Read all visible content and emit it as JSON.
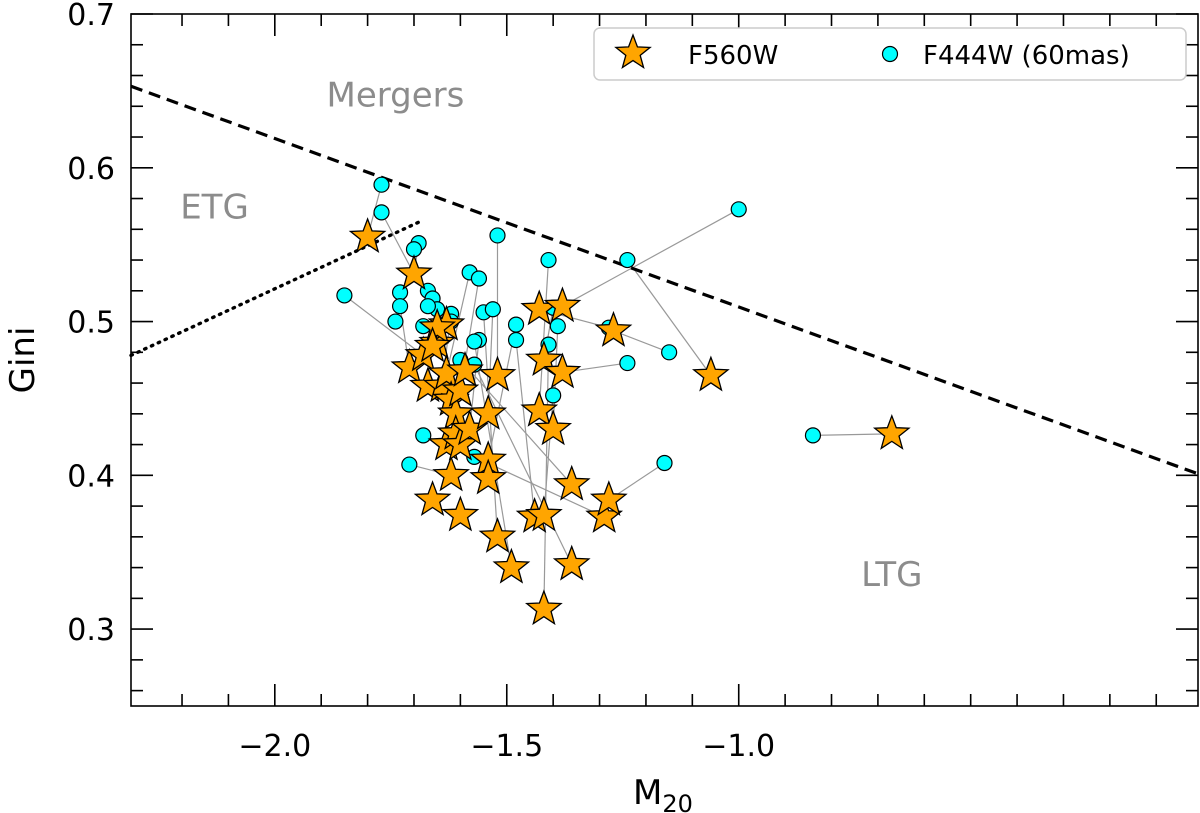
{
  "chart_data": {
    "type": "scatter",
    "xlabel": "M",
    "xlabel_sub": "20",
    "ylabel": "Gini",
    "xlim": [
      -2.31,
      -0.01
    ],
    "ylim": [
      0.25,
      0.7
    ],
    "x_major_ticks": [
      -2.0,
      -1.5,
      -1.0
    ],
    "x_tick_labels": [
      "−2.0",
      "−1.5",
      "−1.0"
    ],
    "y_major_ticks": [
      0.3,
      0.4,
      0.5,
      0.6,
      0.7
    ],
    "y_tick_labels": [
      "0.3",
      "0.4",
      "0.5",
      "0.6",
      "0.7"
    ],
    "legend": {
      "placement": "top-right",
      "entries": [
        "F560W",
        "F444W (60mas)"
      ]
    },
    "colors": {
      "star": "#ffa500",
      "circle": "#00ffff",
      "dashed": "#000000",
      "link": "#999999",
      "region_text": "#8c8c8c"
    },
    "regions": [
      {
        "label": "Mergers",
        "x": -1.74,
        "y": 0.64
      },
      {
        "label": "ETG",
        "x": -2.13,
        "y": 0.567
      },
      {
        "label": "LTG",
        "x": -0.67,
        "y": 0.328
      }
    ],
    "boundary_lines": [
      {
        "style": "dashed",
        "points": [
          [
            -2.31,
            0.653
          ],
          [
            -0.01,
            0.401
          ]
        ]
      },
      {
        "style": "dotted",
        "points": [
          [
            -2.31,
            0.478
          ],
          [
            -1.68,
            0.566
          ]
        ]
      }
    ],
    "series": [
      {
        "name": "F560W",
        "marker": "star",
        "points": [
          [
            -1.8,
            0.555
          ],
          [
            -1.7,
            0.531
          ],
          [
            -1.71,
            0.47
          ],
          [
            -1.68,
            0.478
          ],
          [
            -1.67,
            0.458
          ],
          [
            -1.65,
            0.486
          ],
          [
            -1.64,
            0.458
          ],
          [
            -1.63,
            0.466
          ],
          [
            -1.62,
            0.449
          ],
          [
            -1.61,
            0.44
          ],
          [
            -1.6,
            0.455
          ],
          [
            -1.59,
            0.468
          ],
          [
            -1.63,
            0.42
          ],
          [
            -1.61,
            0.427
          ],
          [
            -1.62,
            0.4
          ],
          [
            -1.6,
            0.42
          ],
          [
            -1.58,
            0.43
          ],
          [
            -1.66,
            0.384
          ],
          [
            -1.6,
            0.374
          ],
          [
            -1.54,
            0.44
          ],
          [
            -1.54,
            0.41
          ],
          [
            -1.54,
            0.398
          ],
          [
            -1.52,
            0.465
          ],
          [
            -1.52,
            0.36
          ],
          [
            -1.49,
            0.34
          ],
          [
            -1.42,
            0.313
          ],
          [
            -1.44,
            0.373
          ],
          [
            -1.42,
            0.374
          ],
          [
            -1.43,
            0.442
          ],
          [
            -1.42,
            0.475
          ],
          [
            -1.4,
            0.43
          ],
          [
            -1.38,
            0.467
          ],
          [
            -1.43,
            0.508
          ],
          [
            -1.38,
            0.51
          ],
          [
            -1.36,
            0.342
          ],
          [
            -1.36,
            0.394
          ],
          [
            -1.29,
            0.373
          ],
          [
            -1.28,
            0.384
          ],
          [
            -1.27,
            0.494
          ],
          [
            -1.06,
            0.465
          ],
          [
            -0.67,
            0.427
          ],
          [
            -1.63,
            0.498
          ],
          [
            -1.65,
            0.496
          ],
          [
            -1.66,
            0.484
          ]
        ]
      },
      {
        "name": "F444W (60mas)",
        "marker": "circle",
        "points": [
          [
            -1.77,
            0.589
          ],
          [
            -1.77,
            0.571
          ],
          [
            -1.69,
            0.551
          ],
          [
            -1.7,
            0.547
          ],
          [
            -1.85,
            0.517
          ],
          [
            -1.73,
            0.519
          ],
          [
            -1.73,
            0.51
          ],
          [
            -1.74,
            0.5
          ],
          [
            -1.68,
            0.497
          ],
          [
            -1.67,
            0.52
          ],
          [
            -1.66,
            0.515
          ],
          [
            -1.65,
            0.508
          ],
          [
            -1.64,
            0.498
          ],
          [
            -1.62,
            0.505
          ],
          [
            -1.62,
            0.5
          ],
          [
            -1.67,
            0.51
          ],
          [
            -1.58,
            0.532
          ],
          [
            -1.56,
            0.528
          ],
          [
            -1.52,
            0.556
          ],
          [
            -1.56,
            0.488
          ],
          [
            -1.57,
            0.487
          ],
          [
            -1.55,
            0.506
          ],
          [
            -1.53,
            0.508
          ],
          [
            -1.48,
            0.498
          ],
          [
            -1.48,
            0.488
          ],
          [
            -1.41,
            0.54
          ],
          [
            -1.41,
            0.485
          ],
          [
            -1.4,
            0.452
          ],
          [
            -1.39,
            0.497
          ],
          [
            -1.4,
            0.509
          ],
          [
            -1.24,
            0.54
          ],
          [
            -1.28,
            0.496
          ],
          [
            -1.24,
            0.473
          ],
          [
            -1.15,
            0.48
          ],
          [
            -1.0,
            0.573
          ],
          [
            -1.16,
            0.408
          ],
          [
            -0.84,
            0.426
          ],
          [
            -1.68,
            0.426
          ],
          [
            -1.71,
            0.407
          ],
          [
            -1.57,
            0.412
          ],
          [
            -1.57,
            0.472
          ],
          [
            -1.6,
            0.475
          ]
        ]
      }
    ],
    "links": [
      [
        [
          -1.8,
          0.555
        ],
        [
          -1.77,
          0.589
        ]
      ],
      [
        [
          -1.7,
          0.531
        ],
        [
          -1.77,
          0.571
        ]
      ],
      [
        [
          -1.7,
          0.531
        ],
        [
          -1.69,
          0.551
        ]
      ],
      [
        [
          -1.71,
          0.47
        ],
        [
          -1.73,
          0.51
        ]
      ],
      [
        [
          -1.68,
          0.478
        ],
        [
          -1.85,
          0.517
        ]
      ],
      [
        [
          -1.67,
          0.458
        ],
        [
          -1.65,
          0.508
        ]
      ],
      [
        [
          -1.64,
          0.458
        ],
        [
          -1.62,
          0.505
        ]
      ],
      [
        [
          -1.63,
          0.466
        ],
        [
          -1.58,
          0.532
        ]
      ],
      [
        [
          -1.6,
          0.455
        ],
        [
          -1.56,
          0.528
        ]
      ],
      [
        [
          -1.52,
          0.465
        ],
        [
          -1.52,
          0.556
        ]
      ],
      [
        [
          -1.63,
          0.42
        ],
        [
          -1.68,
          0.426
        ]
      ],
      [
        [
          -1.62,
          0.4
        ],
        [
          -1.71,
          0.407
        ]
      ],
      [
        [
          -1.58,
          0.43
        ],
        [
          -1.56,
          0.488
        ]
      ],
      [
        [
          -1.54,
          0.44
        ],
        [
          -1.53,
          0.508
        ]
      ],
      [
        [
          -1.54,
          0.41
        ],
        [
          -1.48,
          0.498
        ]
      ],
      [
        [
          -1.52,
          0.36
        ],
        [
          -1.55,
          0.506
        ]
      ],
      [
        [
          -1.49,
          0.34
        ],
        [
          -1.57,
          0.487
        ]
      ],
      [
        [
          -1.42,
          0.313
        ],
        [
          -1.41,
          0.485
        ]
      ],
      [
        [
          -1.44,
          0.373
        ],
        [
          -1.48,
          0.488
        ]
      ],
      [
        [
          -1.42,
          0.374
        ],
        [
          -1.4,
          0.452
        ]
      ],
      [
        [
          -1.43,
          0.442
        ],
        [
          -1.41,
          0.54
        ]
      ],
      [
        [
          -1.42,
          0.475
        ],
        [
          -1.4,
          0.509
        ]
      ],
      [
        [
          -1.4,
          0.43
        ],
        [
          -1.39,
          0.497
        ]
      ],
      [
        [
          -1.38,
          0.467
        ],
        [
          -1.24,
          0.473
        ]
      ],
      [
        [
          -1.43,
          0.508
        ],
        [
          -1.28,
          0.496
        ]
      ],
      [
        [
          -1.38,
          0.51
        ],
        [
          -1.0,
          0.573
        ]
      ],
      [
        [
          -1.36,
          0.342
        ],
        [
          -1.57,
          0.472
        ]
      ],
      [
        [
          -1.36,
          0.394
        ],
        [
          -1.6,
          0.475
        ]
      ],
      [
        [
          -1.29,
          0.373
        ],
        [
          -1.57,
          0.412
        ]
      ],
      [
        [
          -1.28,
          0.384
        ],
        [
          -1.16,
          0.408
        ]
      ],
      [
        [
          -1.27,
          0.494
        ],
        [
          -1.15,
          0.48
        ]
      ],
      [
        [
          -1.06,
          0.465
        ],
        [
          -1.24,
          0.54
        ]
      ],
      [
        [
          -0.67,
          0.427
        ],
        [
          -0.84,
          0.426
        ]
      ]
    ]
  }
}
